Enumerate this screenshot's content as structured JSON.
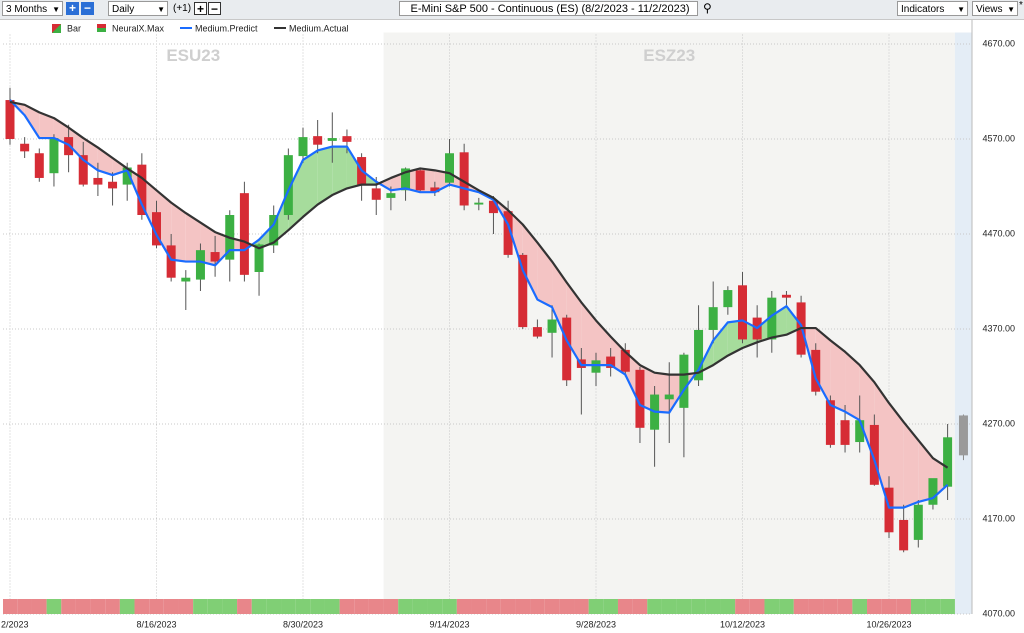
{
  "toolbar": {
    "range": "3 Months",
    "interval": "Daily",
    "offset": "(+1)",
    "symbol": "E-Mini S&P 500 - Continuous (ES) (8/2/2023 - 11/2/2023)",
    "indicators": "Indicators",
    "views": "Views",
    "views_marker": "*"
  },
  "chart_data": {
    "type": "candlestick",
    "candles": {
      "name": "Bar",
      "up_color": "#3cb043",
      "down_color": "#d62c35",
      "open": [
        4611,
        4565,
        4555,
        4534,
        4572,
        4553,
        4529,
        4525,
        4522,
        4543,
        4493,
        4458,
        4420,
        4422,
        4451,
        4443,
        4513,
        4430,
        4458,
        4490,
        4552,
        4573,
        4568,
        4573,
        4551,
        4518,
        4508,
        4516,
        4537,
        4519,
        4524,
        4556,
        4501,
        4505,
        4494,
        4448,
        4372,
        4366,
        4382,
        4338,
        4324,
        4341,
        4348,
        4327,
        4264,
        4296,
        4287,
        4316,
        4369,
        4393,
        4416,
        4382,
        4359,
        4406,
        4398,
        4348,
        4295,
        4274,
        4251,
        4269,
        4203,
        4169,
        4148,
        4185,
        4204
      ],
      "high": [
        4624,
        4572,
        4560,
        4575,
        4585,
        4567,
        4545,
        4535,
        4545,
        4555,
        4505,
        4470,
        4432,
        4460,
        4468,
        4495,
        4525,
        4460,
        4500,
        4560,
        4582,
        4590,
        4598,
        4580,
        4555,
        4530,
        4520,
        4540,
        4540,
        4525,
        4570,
        4565,
        4508,
        4510,
        4505,
        4450,
        4380,
        4395,
        4385,
        4350,
        4345,
        4350,
        4355,
        4330,
        4310,
        4335,
        4345,
        4395,
        4420,
        4415,
        4430,
        4395,
        4410,
        4410,
        4405,
        4355,
        4300,
        4290,
        4300,
        4280,
        4215,
        4185,
        4190,
        4210,
        4270
      ],
      "low": [
        4564,
        4550,
        4525,
        4520,
        4535,
        4520,
        4510,
        4500,
        4505,
        4485,
        4455,
        4420,
        4390,
        4410,
        4425,
        4420,
        4420,
        4405,
        4450,
        4485,
        4545,
        4555,
        4545,
        4555,
        4505,
        4490,
        4495,
        4505,
        4515,
        4510,
        4520,
        4495,
        4495,
        4470,
        4445,
        4370,
        4360,
        4340,
        4310,
        4280,
        4310,
        4320,
        4320,
        4250,
        4225,
        4250,
        4235,
        4310,
        4355,
        4385,
        4355,
        4340,
        4345,
        4395,
        4340,
        4300,
        4245,
        4240,
        4240,
        4205,
        4150,
        4135,
        4140,
        4180,
        4190
      ],
      "close": [
        4570,
        4557,
        4529,
        4571,
        4553,
        4522,
        4522,
        4518,
        4540,
        4490,
        4458,
        4424,
        4424,
        4453,
        4441,
        4490,
        4427,
        4459,
        4490,
        4553,
        4572,
        4564,
        4571,
        4567,
        4522,
        4506,
        4513,
        4539,
        4516,
        4514,
        4555,
        4500,
        4503,
        4492,
        4448,
        4372,
        4362,
        4380,
        4316,
        4329,
        4337,
        4329,
        4325,
        4266,
        4301,
        4301,
        4343,
        4369,
        4393,
        4411,
        4359,
        4359,
        4403,
        4403,
        4343,
        4304,
        4248,
        4248,
        4274,
        4206,
        4156,
        4137,
        4185,
        4213,
        4256
      ]
    },
    "forecast_bar": {
      "color": "#9a9a9a",
      "open": 4237,
      "high": 4280,
      "low": 4232,
      "close": 4279
    },
    "series": [
      {
        "name": "Medium.Predict",
        "color": "#1a6cff",
        "values": [
          4611,
          4595,
          4571,
          4571,
          4564,
          4548,
          4537,
          4532,
          4537,
          4501,
          4469,
          4443,
          4441,
          4441,
          4437,
          4453,
          4453,
          4464,
          4480,
          4516,
          4548,
          4558,
          4562,
          4562,
          4537,
          4525,
          4516,
          4518,
          4514,
          4514,
          4522,
          4518,
          4514,
          4506,
          4480,
          4432,
          4401,
          4393,
          4358,
          4332,
          4332,
          4332,
          4322,
          4290,
          4283,
          4282,
          4306,
          4327,
          4358,
          4377,
          4379,
          4371,
          4384,
          4394,
          4374,
          4318,
          4290,
          4283,
          4274,
          4232,
          4182,
          4182,
          4188,
          4192,
          4206
        ]
      },
      {
        "name": "Medium.Actual",
        "color": "#333333",
        "values": [
          4609,
          4606,
          4598,
          4592,
          4582,
          4571,
          4561,
          4550,
          4539,
          4529,
          4516,
          4503,
          4492,
          4482,
          4472,
          4466,
          4462,
          4455,
          4461,
          4474,
          4488,
          4501,
          4511,
          4518,
          4522,
          4522,
          4529,
          4535,
          4539,
          4537,
          4534,
          4525,
          4516,
          4508,
          4495,
          4480,
          4461,
          4441,
          4419,
          4398,
          4379,
          4362,
          4346,
          4332,
          4324,
          4322,
          4322,
          4324,
          4332,
          4342,
          4350,
          4356,
          4361,
          4364,
          4371,
          4371,
          4358,
          4346,
          4332,
          4314,
          4292,
          4272,
          4253,
          4234,
          4224
        ]
      }
    ],
    "fill_colors": {
      "above": "#a6dc9c",
      "below": "#f4c4c4"
    },
    "indicator": {
      "name": "NeuralX.Max",
      "up_color": "#80cf75",
      "down_color": "#e8868a",
      "states": [
        "down",
        "down",
        "down",
        "up",
        "down",
        "down",
        "down",
        "down",
        "up",
        "down",
        "down",
        "down",
        "down",
        "up",
        "up",
        "up",
        "down",
        "up",
        "up",
        "up",
        "up",
        "up",
        "up",
        "down",
        "down",
        "down",
        "down",
        "up",
        "up",
        "up",
        "up",
        "down",
        "down",
        "down",
        "down",
        "down",
        "down",
        "down",
        "down",
        "down",
        "up",
        "up",
        "down",
        "down",
        "up",
        "up",
        "up",
        "up",
        "up",
        "up",
        "down",
        "down",
        "up",
        "up",
        "down",
        "down",
        "down",
        "down",
        "up",
        "down",
        "down",
        "down",
        "up",
        "up",
        "up"
      ]
    },
    "contracts": [
      {
        "label": "ESU23",
        "start": 0,
        "end": 25,
        "color": "#ffffff"
      },
      {
        "label": "ESZ23",
        "start": 26,
        "end": 64,
        "color": "#f4f4f2"
      }
    ],
    "xticks": [
      {
        "value": 0,
        "label": "2/2023"
      },
      {
        "value": 10,
        "label": "8/16/2023"
      },
      {
        "value": 20,
        "label": "8/30/2023"
      },
      {
        "value": 30,
        "label": "9/14/2023"
      },
      {
        "value": 40,
        "label": "9/28/2023"
      },
      {
        "value": 50,
        "label": "10/12/2023"
      },
      {
        "value": 60,
        "label": "10/26/2023"
      }
    ],
    "ylim": [
      4070,
      4680
    ],
    "yticks": [
      {
        "value": 4070,
        "label": "4070.00"
      },
      {
        "value": 4170,
        "label": "4170.00"
      },
      {
        "value": 4270,
        "label": "4270.00"
      },
      {
        "value": 4370,
        "label": "4370.00"
      },
      {
        "value": 4470,
        "label": "4470.00"
      },
      {
        "value": 4570,
        "label": "4570.00"
      },
      {
        "value": 4670,
        "label": "4670.00"
      }
    ],
    "grid": true
  }
}
